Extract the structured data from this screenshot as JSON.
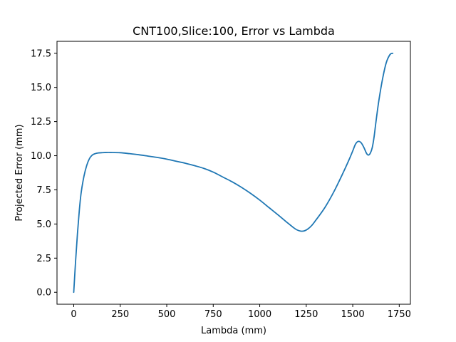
{
  "chart_data": {
    "type": "line",
    "title": "CNT100,Slice:100, Error vs Lambda",
    "xlabel": "Lambda (mm)",
    "ylabel": "Projected Error (mm)",
    "xlim": [
      -90,
      1810
    ],
    "ylim": [
      -0.875,
      18.375
    ],
    "xticks": [
      0,
      250,
      500,
      750,
      1000,
      1250,
      1500,
      1750
    ],
    "yticks": [
      0.0,
      2.5,
      5.0,
      7.5,
      10.0,
      12.5,
      15.0,
      17.5
    ],
    "xtick_labels": [
      "0",
      "250",
      "500",
      "750",
      "1000",
      "1250",
      "1500",
      "1750"
    ],
    "ytick_labels": [
      "0.0",
      "2.5",
      "5.0",
      "7.5",
      "10.0",
      "12.5",
      "15.0",
      "17.5"
    ],
    "grid": false,
    "line_color": "#1f77b4",
    "series": [
      {
        "x": [
          0,
          10,
          20,
          30,
          40,
          55,
          70,
          85,
          100,
          115,
          130,
          150,
          175,
          200,
          250,
          300,
          350,
          400,
          450,
          500,
          550,
          600,
          650,
          700,
          750,
          800,
          850,
          900,
          950,
          1000,
          1050,
          1100,
          1150,
          1180,
          1200,
          1220,
          1240,
          1260,
          1280,
          1300,
          1350,
          1400,
          1450,
          1480,
          1500,
          1515,
          1530,
          1545,
          1560,
          1575,
          1585,
          1595,
          1605,
          1615,
          1625,
          1640,
          1660,
          1680,
          1700,
          1715
        ],
        "y": [
          0.0,
          2.3,
          4.3,
          6.0,
          7.3,
          8.5,
          9.3,
          9.8,
          10.05,
          10.15,
          10.2,
          10.22,
          10.24,
          10.24,
          10.22,
          10.15,
          10.07,
          9.97,
          9.87,
          9.75,
          9.6,
          9.45,
          9.27,
          9.07,
          8.8,
          8.45,
          8.1,
          7.7,
          7.25,
          6.75,
          6.2,
          5.65,
          5.08,
          4.75,
          4.57,
          4.48,
          4.5,
          4.65,
          4.9,
          5.25,
          6.2,
          7.4,
          8.8,
          9.7,
          10.35,
          10.85,
          11.05,
          10.95,
          10.6,
          10.15,
          10.05,
          10.2,
          10.6,
          11.4,
          12.5,
          14.0,
          15.6,
          16.8,
          17.4,
          17.5
        ]
      }
    ]
  }
}
